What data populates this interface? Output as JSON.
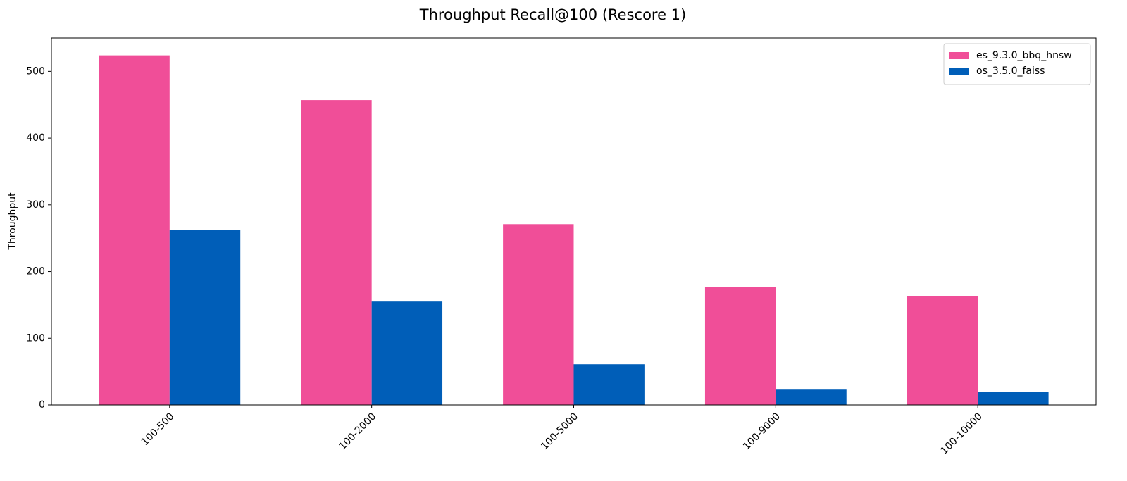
{
  "chart_data": {
    "type": "bar",
    "title": "Throughput Recall@100 (Rescore 1)",
    "y_label": "Throughput",
    "categories": [
      "100-500",
      "100-2000",
      "100-5000",
      "100-9000",
      "100-10000"
    ],
    "series": [
      {
        "name": "es_9.3.0_bbq_hnsw",
        "color": "#f04e98",
        "values": [
          524,
          457,
          271,
          177,
          163
        ]
      },
      {
        "name": "os_3.5.0_faiss",
        "color": "#005eb8",
        "values": [
          262,
          155,
          61,
          23,
          20
        ]
      }
    ],
    "ylim": [
      0,
      550
    ],
    "yticks": [
      0,
      100,
      200,
      300,
      400,
      500
    ],
    "legend": "upper right"
  }
}
